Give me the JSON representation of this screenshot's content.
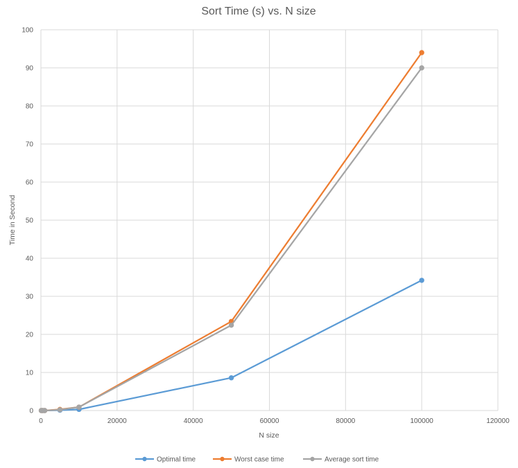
{
  "chart_data": {
    "type": "line",
    "title": "Sort Time (s) vs. N size",
    "xlabel": "N size",
    "ylabel": "Time in Second",
    "xlim": [
      0,
      120000
    ],
    "ylim": [
      0,
      100
    ],
    "x_ticks": [
      0,
      20000,
      40000,
      60000,
      80000,
      100000,
      120000
    ],
    "y_ticks": [
      0,
      10,
      20,
      30,
      40,
      50,
      60,
      70,
      80,
      90,
      100
    ],
    "x_tick_labels": [
      "0",
      "20000",
      "40000",
      "60000",
      "80000",
      "100000",
      "120000"
    ],
    "y_tick_labels": [
      "0",
      "10",
      "20",
      "30",
      "40",
      "50",
      "60",
      "70",
      "80",
      "90",
      "100"
    ],
    "grid": true,
    "legend_position": "bottom",
    "series": [
      {
        "name": "Optimal time",
        "color": "#5B9BD5",
        "points": [
          {
            "x": 100,
            "y": 0
          },
          {
            "x": 500,
            "y": 0
          },
          {
            "x": 1000,
            "y": 0
          },
          {
            "x": 5000,
            "y": 0.1
          },
          {
            "x": 10000,
            "y": 0.3
          },
          {
            "x": 50000,
            "y": 8.6
          },
          {
            "x": 100000,
            "y": 34.2
          }
        ]
      },
      {
        "name": "Worst case time",
        "color": "#ED7D31",
        "points": [
          {
            "x": 100,
            "y": 0
          },
          {
            "x": 500,
            "y": 0
          },
          {
            "x": 1000,
            "y": 0
          },
          {
            "x": 5000,
            "y": 0.3
          },
          {
            "x": 10000,
            "y": 0.9
          },
          {
            "x": 50000,
            "y": 23.4
          },
          {
            "x": 100000,
            "y": 94
          }
        ]
      },
      {
        "name": "Average sort time",
        "color": "#A5A5A5",
        "points": [
          {
            "x": 100,
            "y": 0
          },
          {
            "x": 500,
            "y": 0
          },
          {
            "x": 1000,
            "y": 0
          },
          {
            "x": 5000,
            "y": 0.2
          },
          {
            "x": 10000,
            "y": 0.9
          },
          {
            "x": 50000,
            "y": 22.4
          },
          {
            "x": 100000,
            "y": 90
          }
        ]
      }
    ]
  }
}
